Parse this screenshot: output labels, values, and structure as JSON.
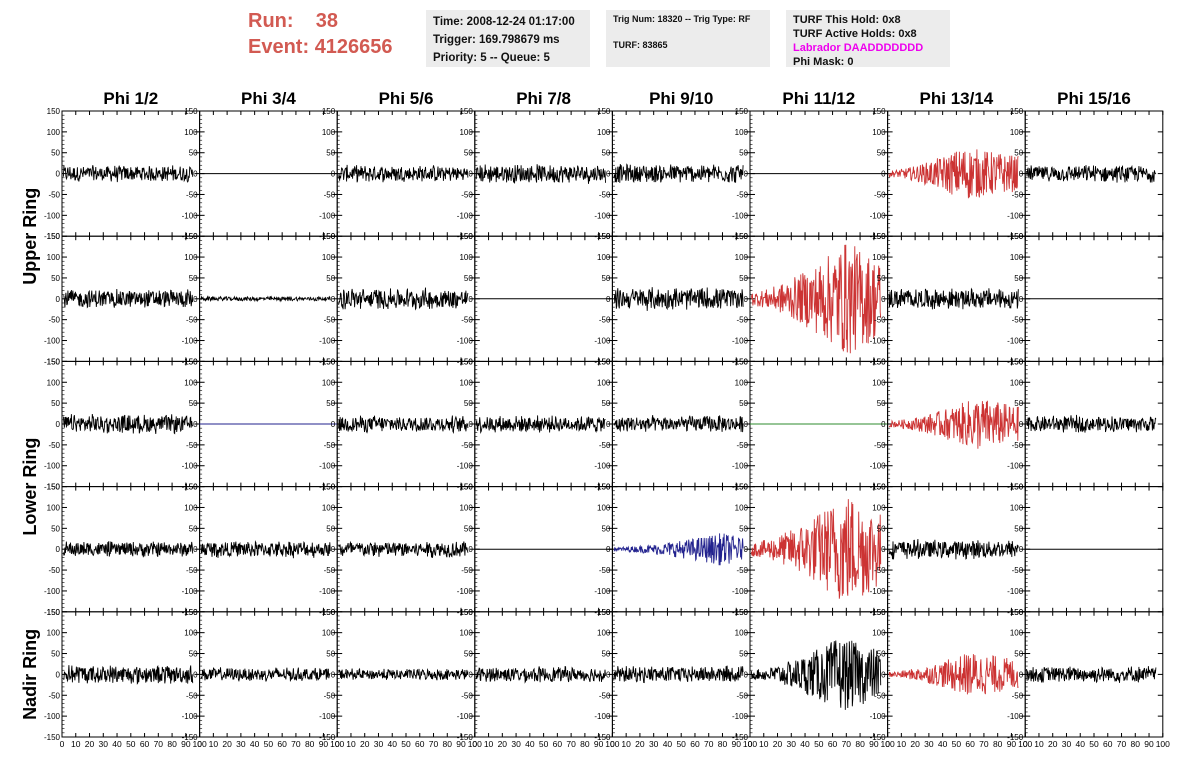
{
  "header": {
    "run_label": "Run:",
    "run_value": "38",
    "event_label": "Event:",
    "event_value": "4126656"
  },
  "info_box_1": {
    "time": "Time: 2008-12-24 01:17:00",
    "trigger": "Trigger: 169.798679 ms",
    "priority_queue": "Priority: 5 -- Queue: 5"
  },
  "info_box_2": {
    "trig": "Trig Num: 18320 -- Trig Type: RF",
    "turf": "TURF: 83865"
  },
  "info_box_3": {
    "this_hold": "TURF This Hold: 0x8",
    "active_holds": "TURF Active Holds: 0x8",
    "labrador": "Labrador DAADDDDDDD",
    "phi_mask": "Phi Mask: 0"
  },
  "colors": {
    "header_text": "#d25a52",
    "labrador_text": "#ee00ee",
    "info_box_bg": "#ececec",
    "trace_default": "#000000",
    "trace_red": "#cc3333",
    "trace_blue": "#22228e",
    "trace_green": "#2e8b2e"
  },
  "chart_data": {
    "type": "line",
    "columns": [
      "Phi 1/2",
      "Phi 3/4",
      "Phi 5/6",
      "Phi 7/8",
      "Phi 9/10",
      "Phi 11/12",
      "Phi 13/14",
      "Phi 15/16"
    ],
    "ring_labels": [
      {
        "name": "Upper Ring",
        "rows": [
          0,
          1
        ]
      },
      {
        "name": "Lower Ring",
        "rows": [
          2,
          3
        ]
      },
      {
        "name": "Nadir Ring",
        "rows": [
          4
        ]
      }
    ],
    "rows": 5,
    "xlim": [
      0,
      100
    ],
    "ylim": [
      -150,
      150
    ],
    "xticks": [
      0,
      10,
      20,
      30,
      40,
      50,
      60,
      70,
      80,
      90,
      100
    ],
    "yticks": [
      150,
      100,
      50,
      0,
      -50,
      -100,
      -150
    ],
    "grid": false,
    "panels": [
      [
        {
          "type": "noise",
          "color": "trace_default",
          "amp": 22
        },
        {
          "type": "flat",
          "color": "trace_default"
        },
        {
          "type": "noise",
          "color": "trace_default",
          "amp": 22
        },
        {
          "type": "noise",
          "color": "trace_default",
          "amp": 25
        },
        {
          "type": "noise",
          "color": "trace_default",
          "amp": 25
        },
        {
          "type": "flat",
          "color": "trace_default"
        },
        {
          "type": "pulse",
          "color": "trace_red",
          "amp": 65,
          "peak": 55
        },
        {
          "type": "noise",
          "color": "trace_default",
          "amp": 22
        }
      ],
      [
        {
          "type": "noise",
          "color": "trace_default",
          "amp": 25
        },
        {
          "type": "noise",
          "color": "trace_default",
          "amp": 6
        },
        {
          "type": "noise",
          "color": "trace_default",
          "amp": 28
        },
        {
          "type": "flat",
          "color": "trace_default"
        },
        {
          "type": "noise",
          "color": "trace_default",
          "amp": 30
        },
        {
          "type": "pulse",
          "color": "trace_red",
          "amp": 140,
          "peak": 70
        },
        {
          "type": "noise",
          "color": "trace_default",
          "amp": 28
        },
        {
          "type": "flat",
          "color": "trace_default"
        }
      ],
      [
        {
          "type": "noise",
          "color": "trace_default",
          "amp": 25
        },
        {
          "type": "flat",
          "color": "trace_blue"
        },
        {
          "type": "noise",
          "color": "trace_default",
          "amp": 22
        },
        {
          "type": "noise",
          "color": "trace_default",
          "amp": 22
        },
        {
          "type": "noise",
          "color": "trace_default",
          "amp": 22
        },
        {
          "type": "flat",
          "color": "trace_green"
        },
        {
          "type": "pulse",
          "color": "trace_red",
          "amp": 65,
          "peak": 65
        },
        {
          "type": "noise",
          "color": "trace_default",
          "amp": 22
        }
      ],
      [
        {
          "type": "noise",
          "color": "trace_default",
          "amp": 20
        },
        {
          "type": "noise",
          "color": "trace_default",
          "amp": 22
        },
        {
          "type": "noise",
          "color": "trace_default",
          "amp": 22
        },
        {
          "type": "flat",
          "color": "trace_default"
        },
        {
          "type": "pulse",
          "color": "trace_blue",
          "amp": 40,
          "peak": 80
        },
        {
          "type": "pulse",
          "color": "trace_red",
          "amp": 140,
          "peak": 70
        },
        {
          "type": "noise",
          "color": "trace_default",
          "amp": 25
        },
        {
          "type": "flat",
          "color": "trace_default"
        }
      ],
      [
        {
          "type": "noise",
          "color": "trace_default",
          "amp": 25
        },
        {
          "type": "noise",
          "color": "trace_default",
          "amp": 18
        },
        {
          "type": "noise",
          "color": "trace_default",
          "amp": 15
        },
        {
          "type": "noise",
          "color": "trace_default",
          "amp": 20
        },
        {
          "type": "noise",
          "color": "trace_default",
          "amp": 22
        },
        {
          "type": "pulse",
          "color": "trace_default",
          "amp": 90,
          "peak": 65
        },
        {
          "type": "pulse",
          "color": "trace_red",
          "amp": 55,
          "peak": 60
        },
        {
          "type": "noise",
          "color": "trace_default",
          "amp": 22
        }
      ]
    ]
  }
}
